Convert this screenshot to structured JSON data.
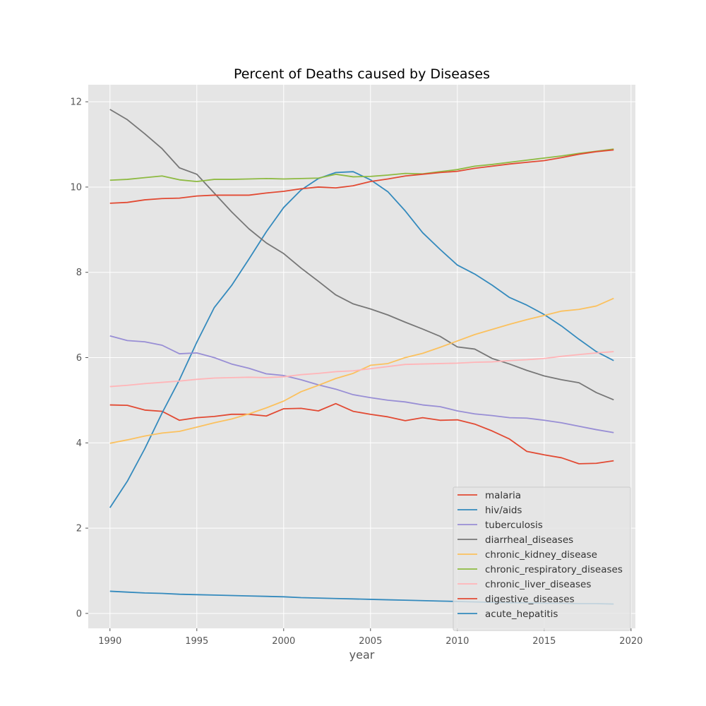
{
  "chart_data": {
    "type": "line",
    "title": "Percent of Deaths caused by Diseases",
    "xlabel": "year",
    "ylabel": "",
    "xlim": [
      1988.75,
      2020.25
    ],
    "ylim": [
      -0.35,
      12.4
    ],
    "xticks": [
      1990,
      1995,
      2000,
      2005,
      2010,
      2015,
      2020
    ],
    "yticks": [
      0,
      2,
      4,
      6,
      8,
      10,
      12
    ],
    "grid": true,
    "legend_position": "lower-right",
    "x": [
      1990,
      1991,
      1992,
      1993,
      1994,
      1995,
      1996,
      1997,
      1998,
      1999,
      2000,
      2001,
      2002,
      2003,
      2004,
      2005,
      2006,
      2007,
      2008,
      2009,
      2010,
      2011,
      2012,
      2013,
      2014,
      2015,
      2016,
      2017,
      2018,
      2019
    ],
    "series": [
      {
        "name": "malaria",
        "color": "#E24A33",
        "values": [
          4.89,
          4.88,
          4.77,
          4.74,
          4.53,
          4.59,
          4.62,
          4.67,
          4.67,
          4.63,
          4.8,
          4.81,
          4.75,
          4.92,
          4.74,
          4.67,
          4.61,
          4.52,
          4.59,
          4.53,
          4.54,
          4.44,
          4.28,
          4.09,
          3.8,
          3.72,
          3.65,
          3.51,
          3.52,
          3.58
        ]
      },
      {
        "name": "hiv/aids",
        "color": "#348ABD",
        "values": [
          2.48,
          3.1,
          3.86,
          4.7,
          5.48,
          6.36,
          7.17,
          7.69,
          8.31,
          8.95,
          9.52,
          9.93,
          10.2,
          10.34,
          10.36,
          10.17,
          9.89,
          9.44,
          8.93,
          8.54,
          8.17,
          7.96,
          7.7,
          7.41,
          7.23,
          7.01,
          6.74,
          6.43,
          6.14,
          5.93
        ]
      },
      {
        "name": "tuberculosis",
        "color": "#988ED5",
        "values": [
          6.51,
          6.4,
          6.37,
          6.29,
          6.09,
          6.11,
          6.0,
          5.85,
          5.75,
          5.62,
          5.58,
          5.48,
          5.36,
          5.26,
          5.13,
          5.06,
          5.0,
          4.96,
          4.89,
          4.85,
          4.75,
          4.68,
          4.64,
          4.59,
          4.58,
          4.53,
          4.47,
          4.39,
          4.31,
          4.24
        ]
      },
      {
        "name": "diarrheal_diseases",
        "color": "#777777",
        "values": [
          11.82,
          11.58,
          11.25,
          10.9,
          10.45,
          10.3,
          9.86,
          9.42,
          9.02,
          8.69,
          8.44,
          8.1,
          7.79,
          7.47,
          7.26,
          7.14,
          7.0,
          6.83,
          6.67,
          6.5,
          6.25,
          6.2,
          5.98,
          5.85,
          5.7,
          5.57,
          5.48,
          5.41,
          5.18,
          5.01
        ]
      },
      {
        "name": "chronic_kidney_disease",
        "color": "#FBC15E",
        "values": [
          3.99,
          4.07,
          4.16,
          4.23,
          4.27,
          4.37,
          4.47,
          4.56,
          4.68,
          4.82,
          4.98,
          5.2,
          5.35,
          5.51,
          5.63,
          5.82,
          5.86,
          6.0,
          6.1,
          6.24,
          6.39,
          6.54,
          6.66,
          6.78,
          6.89,
          6.99,
          7.09,
          7.13,
          7.21,
          7.39
        ]
      },
      {
        "name": "chronic_respiratory_diseases",
        "color": "#8EBA42",
        "values": [
          10.16,
          10.18,
          10.22,
          10.26,
          10.17,
          10.13,
          10.18,
          10.18,
          10.19,
          10.2,
          10.19,
          10.2,
          10.21,
          10.3,
          10.24,
          10.25,
          10.28,
          10.32,
          10.31,
          10.36,
          10.41,
          10.49,
          10.53,
          10.58,
          10.63,
          10.68,
          10.73,
          10.79,
          10.84,
          10.89
        ]
      },
      {
        "name": "chronic_liver_diseases",
        "color": "#FFB5B8",
        "values": [
          5.32,
          5.35,
          5.39,
          5.42,
          5.45,
          5.49,
          5.52,
          5.53,
          5.54,
          5.53,
          5.55,
          5.6,
          5.63,
          5.67,
          5.69,
          5.74,
          5.79,
          5.84,
          5.85,
          5.86,
          5.87,
          5.89,
          5.9,
          5.93,
          5.95,
          5.98,
          6.03,
          6.07,
          6.11,
          6.14
        ]
      },
      {
        "name": "digestive_diseases",
        "color": "#E24A33",
        "values": [
          9.62,
          9.64,
          9.7,
          9.73,
          9.74,
          9.79,
          9.81,
          9.81,
          9.81,
          9.86,
          9.9,
          9.96,
          10.0,
          9.98,
          10.03,
          10.13,
          10.19,
          10.26,
          10.3,
          10.34,
          10.37,
          10.44,
          10.49,
          10.54,
          10.58,
          10.62,
          10.69,
          10.77,
          10.83,
          10.87
        ]
      },
      {
        "name": "acute_hepatitis",
        "color": "#348ABD",
        "values": [
          0.52,
          0.5,
          0.48,
          0.47,
          0.45,
          0.44,
          0.43,
          0.42,
          0.41,
          0.4,
          0.39,
          0.37,
          0.36,
          0.35,
          0.34,
          0.33,
          0.32,
          0.31,
          0.3,
          0.29,
          0.28,
          0.27,
          0.26,
          0.25,
          0.25,
          0.24,
          0.24,
          0.23,
          0.23,
          0.22
        ]
      }
    ]
  }
}
